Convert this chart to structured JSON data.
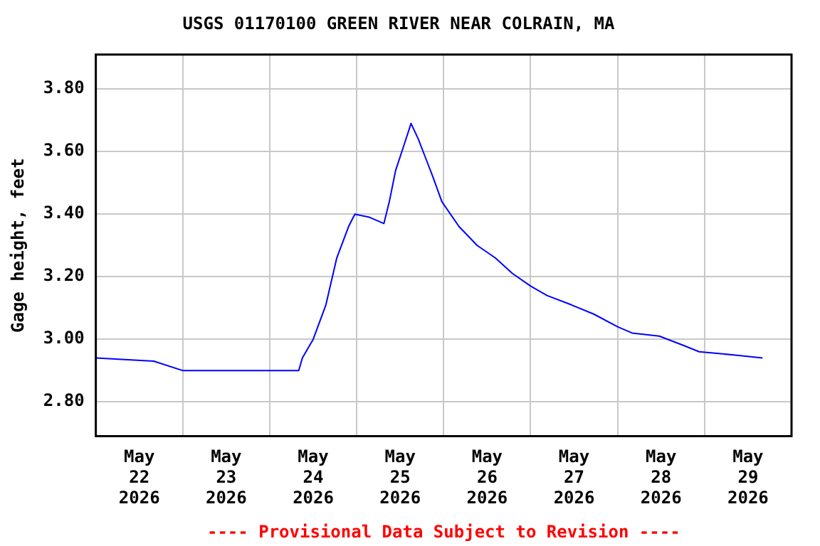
{
  "chart_data": {
    "type": "line",
    "title": "USGS 01170100 GREEN RIVER NEAR COLRAIN, MA",
    "ylabel": "Gage height, feet",
    "annotations": [
      "---- Provisional Data Subject to Revision ----"
    ],
    "x": [
      "2026-05-22T00:00",
      "2026-05-22T16:00",
      "2026-05-23T00:00",
      "2026-05-23T11:30",
      "2026-05-24T00:00",
      "2026-05-24T08:00",
      "2026-05-24T09:00",
      "2026-05-24T12:00",
      "2026-05-24T15:30",
      "2026-05-24T18:30",
      "2026-05-24T21:45",
      "2026-05-24T23:30",
      "2026-05-25T03:30",
      "2026-05-25T07:30",
      "2026-05-25T09:00",
      "2026-05-25T10:45",
      "2026-05-25T12:45",
      "2026-05-25T15:00",
      "2026-05-25T17:00",
      "2026-05-25T19:00",
      "2026-05-25T21:00",
      "2026-05-25T23:30",
      "2026-05-26T04:15",
      "2026-05-26T09:15",
      "2026-05-26T14:15",
      "2026-05-26T19:00",
      "2026-05-27T00:00",
      "2026-05-27T04:30",
      "2026-05-27T11:15",
      "2026-05-27T17:30",
      "2026-05-28T00:00",
      "2026-05-28T04:00",
      "2026-05-28T11:30",
      "2026-05-28T18:15",
      "2026-05-28T22:30",
      "2026-05-29T08:00",
      "2026-05-29T16:00"
    ],
    "series": [
      {
        "color": "#0000ff",
        "values": [
          2.94,
          2.93,
          2.9,
          2.9,
          2.9,
          2.9,
          2.94,
          3.0,
          3.11,
          3.26,
          3.36,
          3.4,
          3.39,
          3.37,
          3.44,
          3.54,
          3.61,
          3.69,
          3.64,
          3.58,
          3.52,
          3.44,
          3.36,
          3.3,
          3.26,
          3.21,
          3.17,
          3.14,
          3.11,
          3.08,
          3.04,
          3.02,
          3.01,
          2.98,
          2.96,
          2.95,
          2.94
        ]
      }
    ],
    "xlim": [
      "2026-05-22T00:00",
      "2026-05-30T00:00"
    ],
    "xticks": [
      {
        "value": "2026-05-22T00:00",
        "label": null
      },
      {
        "value": "2026-05-22T12:00",
        "label": "May\n22\n2026"
      },
      {
        "value": "2026-05-23T00:00",
        "label": null
      },
      {
        "value": "2026-05-23T12:00",
        "label": "May\n23\n2026"
      },
      {
        "value": "2026-05-24T00:00",
        "label": null
      },
      {
        "value": "2026-05-24T12:00",
        "label": "May\n24\n2026"
      },
      {
        "value": "2026-05-25T00:00",
        "label": null
      },
      {
        "value": "2026-05-25T12:00",
        "label": "May\n25\n2026"
      },
      {
        "value": "2026-05-26T00:00",
        "label": null
      },
      {
        "value": "2026-05-26T12:00",
        "label": "May\n26\n2026"
      },
      {
        "value": "2026-05-27T00:00",
        "label": null
      },
      {
        "value": "2026-05-27T12:00",
        "label": "May\n27\n2026"
      },
      {
        "value": "2026-05-28T00:00",
        "label": null
      },
      {
        "value": "2026-05-28T12:00",
        "label": "May\n28\n2026"
      },
      {
        "value": "2026-05-29T00:00",
        "label": null
      },
      {
        "value": "2026-05-29T12:00",
        "label": "May\n29\n2026"
      },
      {
        "value": "2026-05-30T00:00",
        "label": null
      }
    ],
    "ylim": [
      2.69,
      3.91
    ],
    "yticks": [
      {
        "value": 2.8,
        "label": "2.80"
      },
      {
        "value": 3.0,
        "label": "3.00"
      },
      {
        "value": 3.2,
        "label": "3.20"
      },
      {
        "value": 3.4,
        "label": "3.40"
      },
      {
        "value": 3.6,
        "label": "3.60"
      },
      {
        "value": 3.8,
        "label": "3.80"
      }
    ],
    "grid": true,
    "marker": "none",
    "line_style": "solid"
  }
}
